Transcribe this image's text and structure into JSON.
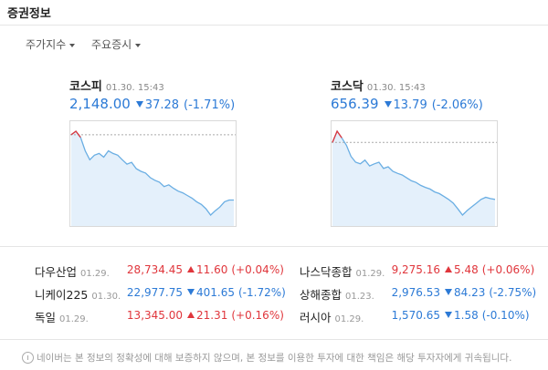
{
  "header": {
    "title": "증권정보"
  },
  "tabs": [
    "주가지수",
    "주요증시"
  ],
  "charts": [
    {
      "name": "코스피",
      "time": "01.30. 15:43",
      "price": "2,148.00",
      "change": "37.28",
      "rate": "(-1.71%)",
      "direction": "down",
      "spark": [
        2185.3,
        2187.3,
        2183.8,
        2176.1,
        2171.0,
        2173.6,
        2174.6,
        2172.5,
        2176.1,
        2174.6,
        2173.6,
        2171.0,
        2168.5,
        2169.5,
        2165.9,
        2164.4,
        2163.4,
        2160.8,
        2159.3,
        2158.2,
        2155.7,
        2156.7,
        2154.7,
        2153.1,
        2152.1,
        2150.6,
        2149.1,
        2147.0,
        2145.5,
        2143.0,
        2139.4,
        2141.9,
        2144.0,
        2147.0,
        2148.0,
        2148.0
      ]
    },
    {
      "name": "코스닥",
      "time": "01.30. 15:43",
      "price": "656.39",
      "change": "13.79",
      "rate": "(-2.06%)",
      "direction": "down",
      "spark": [
        670.2,
        672.9,
        671.3,
        669.5,
        666.8,
        665.4,
        665.0,
        665.9,
        664.5,
        665.0,
        665.4,
        663.9,
        664.3,
        663.2,
        662.7,
        662.3,
        661.6,
        660.9,
        660.5,
        659.8,
        659.3,
        658.9,
        658.2,
        657.8,
        657.1,
        656.4,
        655.5,
        654.1,
        652.6,
        653.7,
        654.6,
        655.5,
        656.4,
        656.9,
        656.6,
        656.4
      ]
    }
  ],
  "table": {
    "rows": [
      {
        "name": "다우산업",
        "date": "01.29.",
        "value": "28,734.45",
        "change": "11.60",
        "rate": "(+0.04%)",
        "direction": "up"
      },
      {
        "name": "나스닥종합",
        "date": "01.29.",
        "value": "9,275.16",
        "change": "5.48",
        "rate": "(+0.06%)",
        "direction": "up"
      },
      {
        "name": "니케이225",
        "date": "01.30.",
        "value": "22,977.75",
        "change": "401.65",
        "rate": "(-1.72%)",
        "direction": "down"
      },
      {
        "name": "상해종합",
        "date": "01.23.",
        "value": "2,976.53",
        "change": "84.23",
        "rate": "(-2.75%)",
        "direction": "down"
      },
      {
        "name": "독일",
        "date": "01.29.",
        "value": "13,345.00",
        "change": "21.31",
        "rate": "(+0.16%)",
        "direction": "up"
      },
      {
        "name": "러시아",
        "date": "01.29.",
        "value": "1,570.65",
        "change": "1.58",
        "rate": "(-0.10%)",
        "direction": "down"
      }
    ]
  },
  "notice": "네이버는 본 정보의 정확성에 대해 보증하지 않으며, 본 정보를 이용한 투자에 대한 책임은 해당 투자자에게 귀속됩니다."
}
